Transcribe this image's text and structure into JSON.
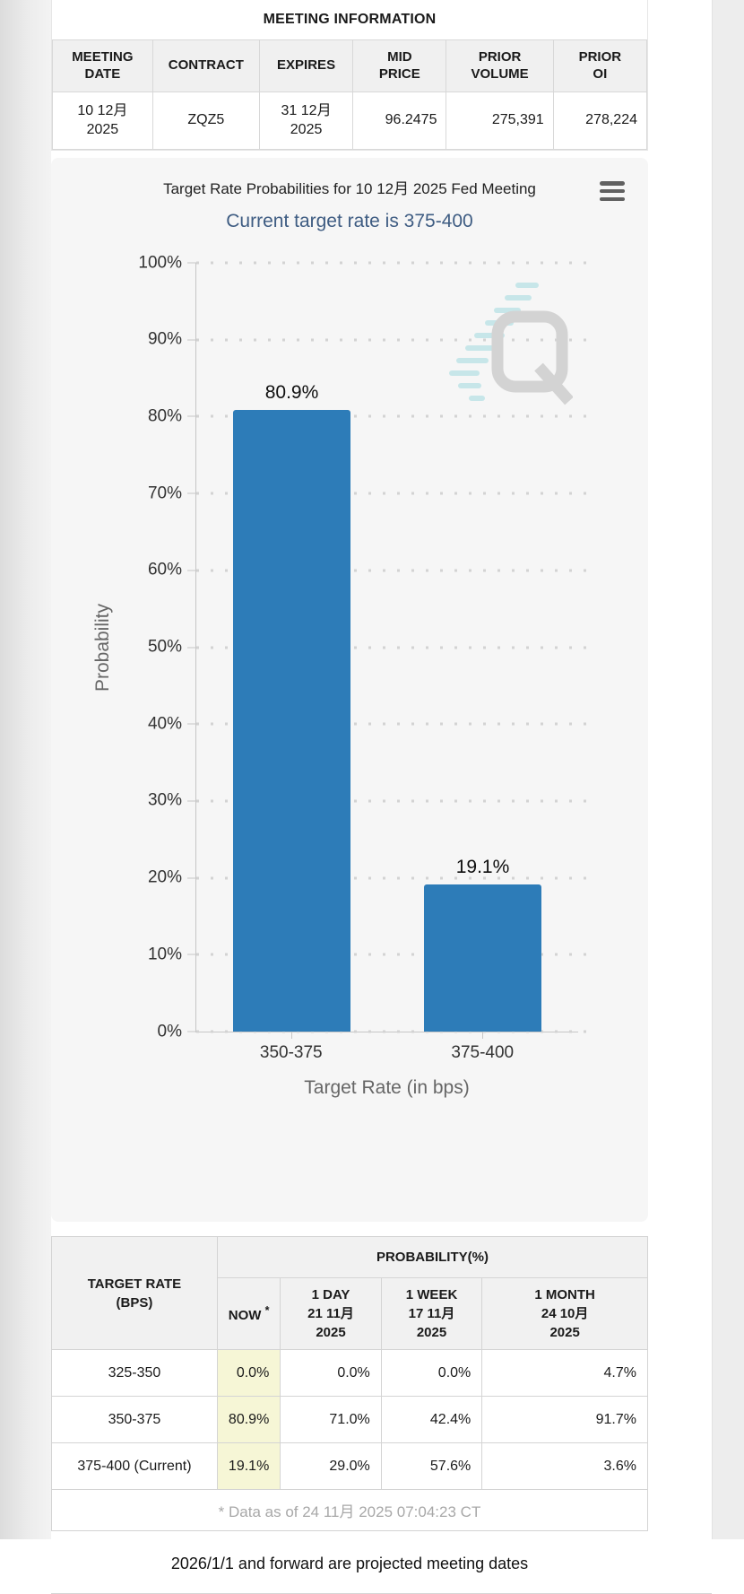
{
  "meeting_info": {
    "title": "MEETING INFORMATION",
    "columns": [
      "MEETING\nDATE",
      "CONTRACT",
      "EXPIRES",
      "MID\nPRICE",
      "PRIOR\nVOLUME",
      "PRIOR\nOI"
    ],
    "row": {
      "meeting_date": "10 12月 2025",
      "contract": "ZQZ5",
      "expires": "31 12月 2025",
      "mid_price": "96.2475",
      "prior_volume": "275,391",
      "prior_oi": "278,224"
    }
  },
  "chart_data": {
    "type": "bar",
    "title": "Target Rate Probabilities for 10 12月 2025 Fed Meeting",
    "subtitle": "Current target rate is 375-400",
    "categories": [
      "350-375",
      "375-400"
    ],
    "values": [
      80.9,
      19.1
    ],
    "data_labels": [
      "80.9%",
      "19.1%"
    ],
    "xlabel": "Target Rate (in bps)",
    "ylabel": "Probability",
    "ylim": [
      0,
      100
    ],
    "yticks": [
      "0%",
      "10%",
      "20%",
      "30%",
      "40%",
      "50%",
      "60%",
      "70%",
      "80%",
      "90%",
      "100%"
    ],
    "grid": "dotted horizontal",
    "legend": "none",
    "bar_color": "#2d7cb8",
    "subtitle_color": "#3e5c82",
    "watermark": "QuikStrike Q logo"
  },
  "probability_table": {
    "corner_header": "TARGET RATE\n(BPS)",
    "group_header": "PROBABILITY(%)",
    "now_label": "NOW",
    "now_asterisk": "*",
    "sub_headers": {
      "day": "1 DAY\n21 11月\n2025",
      "week": "1 WEEK\n17 11月\n2025",
      "month": "1 MONTH\n24 10月\n2025"
    },
    "rows": [
      {
        "rate": "325-350",
        "now": "0.0%",
        "day": "0.0%",
        "week": "0.0%",
        "month": "4.7%"
      },
      {
        "rate": "350-375",
        "now": "80.9%",
        "day": "71.0%",
        "week": "42.4%",
        "month": "91.7%"
      },
      {
        "rate": "375-400 (Current)",
        "now": "19.1%",
        "day": "29.0%",
        "week": "57.6%",
        "month": "3.6%"
      }
    ],
    "footnote": "* Data as of 24 11月 2025 07:04:23 CT"
  },
  "footer_note": "2026/1/1 and forward are projected meeting dates"
}
